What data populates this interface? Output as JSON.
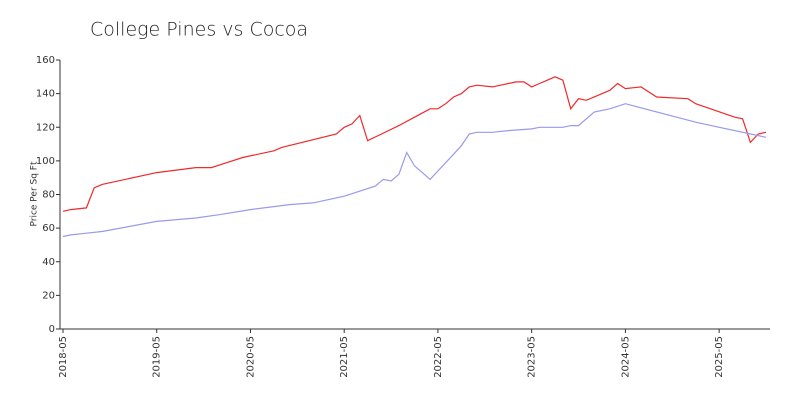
{
  "chart_data": {
    "type": "line",
    "title": "College Pines vs Cocoa",
    "y_label": "Price Per Sq Ft",
    "xlim": [
      "2018-05",
      "2025-11"
    ],
    "xticks": [
      "2018-05",
      "2019-05",
      "2020-05",
      "2021-05",
      "2022-05",
      "2023-05",
      "2024-05",
      "2025-05"
    ],
    "ylim": [
      0,
      160
    ],
    "yticks": [
      0,
      20,
      40,
      60,
      80,
      100,
      120,
      140,
      160
    ],
    "grid": false,
    "series": [
      {
        "color": "#ee2a2a",
        "x": [
          "2018-05",
          "2018-06",
          "2018-08",
          "2018-09",
          "2018-10",
          "2019-05",
          "2019-10",
          "2019-12",
          "2020-02",
          "2020-04",
          "2020-08",
          "2020-09",
          "2021-04",
          "2021-05",
          "2021-06",
          "2021-07",
          "2021-08",
          "2021-12",
          "2022-02",
          "2022-04",
          "2022-05",
          "2022-06",
          "2022-07",
          "2022-08",
          "2022-09",
          "2022-10",
          "2022-12",
          "2023-03",
          "2023-04",
          "2023-05",
          "2023-06",
          "2023-07",
          "2023-08",
          "2023-09",
          "2023-10",
          "2023-11",
          "2023-12",
          "2024-03",
          "2024-04",
          "2024-05",
          "2024-07",
          "2024-09",
          "2025-01",
          "2025-02",
          "2025-07",
          "2025-08",
          "2025-09",
          "2025-10",
          "2025-11"
        ],
        "values": [
          70,
          71,
          72,
          84,
          86,
          93,
          96,
          96,
          99,
          102,
          106,
          108,
          116,
          120,
          122,
          127,
          112,
          121,
          126,
          131,
          131,
          134,
          138,
          140,
          144,
          145,
          144,
          147,
          147,
          144,
          146,
          148,
          150,
          148,
          131,
          137,
          136,
          142,
          146,
          143,
          144,
          138,
          137,
          134,
          126,
          125,
          111,
          116,
          117
        ]
      },
      {
        "color": "#9999ee",
        "x": [
          "2018-05",
          "2018-06",
          "2018-08",
          "2018-10",
          "2019-05",
          "2019-10",
          "2020-01",
          "2020-05",
          "2020-10",
          "2021-01",
          "2021-05",
          "2021-09",
          "2021-10",
          "2021-11",
          "2021-12",
          "2022-01",
          "2022-02",
          "2022-03",
          "2022-04",
          "2022-05",
          "2022-07",
          "2022-08",
          "2022-09",
          "2022-10",
          "2022-12",
          "2023-02",
          "2023-05",
          "2023-06",
          "2023-09",
          "2023-10",
          "2023-11",
          "2024-01",
          "2024-03",
          "2024-05",
          "2025-02",
          "2025-04",
          "2025-11"
        ],
        "values": [
          55,
          56,
          57,
          58,
          64,
          66,
          68,
          71,
          74,
          75,
          79,
          85,
          89,
          88,
          92,
          105,
          97,
          93,
          89,
          94,
          104,
          109,
          116,
          117,
          117,
          118,
          119,
          120,
          120,
          121,
          121,
          129,
          131,
          134,
          123,
          121,
          114
        ]
      }
    ]
  }
}
